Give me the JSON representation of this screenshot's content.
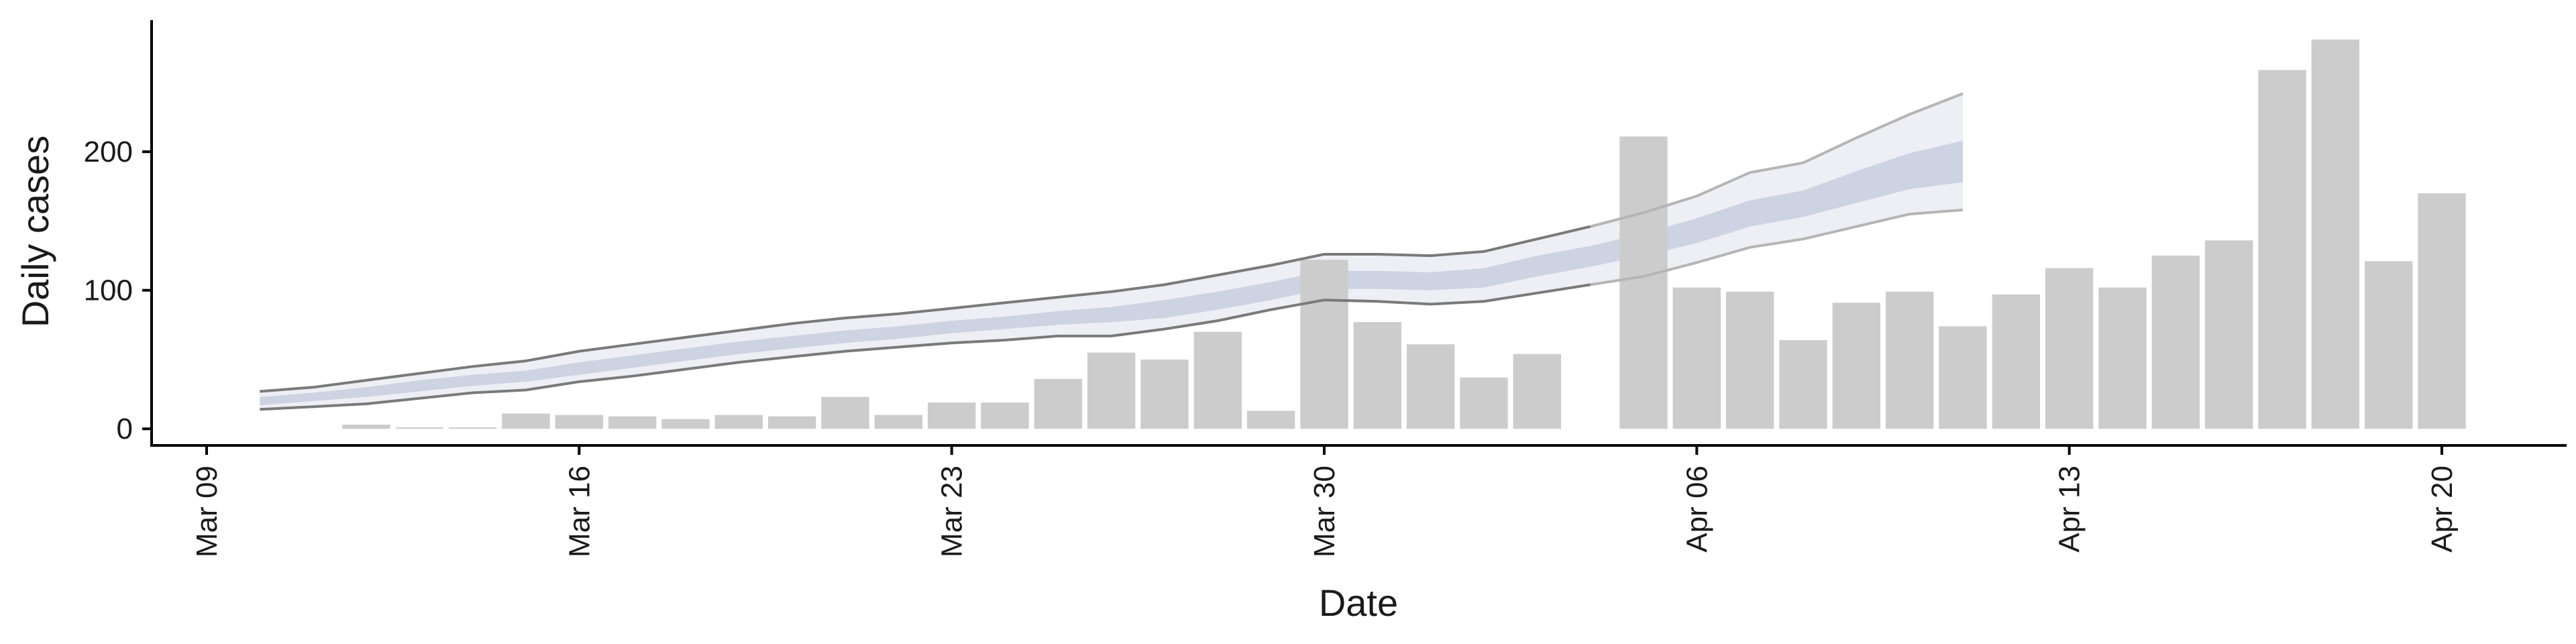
{
  "chart_data": {
    "type": "bar",
    "title": "",
    "xlabel": "Date",
    "ylabel": "Daily cases",
    "ylim": [
      -12,
      295
    ],
    "yticks": [
      0,
      100,
      200
    ],
    "xticks": [
      "Mar 09",
      "Mar 16",
      "Mar 23",
      "Mar 30",
      "Apr 06",
      "Apr 13",
      "Apr 20"
    ],
    "x_start_date": "2020-03-09",
    "x_end_date": "2020-04-20",
    "grid": false,
    "legend": "none",
    "colors": {
      "bars": "#cccccc",
      "band_outer": "#c5cadc",
      "band_inner": "#a7b1cc",
      "interval_lines": "#7a7a7a",
      "interval_lines_projection": "#b5b5b5"
    },
    "bars": [
      {
        "date": "2020-03-12",
        "value": 3
      },
      {
        "date": "2020-03-13",
        "value": 1
      },
      {
        "date": "2020-03-14",
        "value": 1
      },
      {
        "date": "2020-03-15",
        "value": 11
      },
      {
        "date": "2020-03-16",
        "value": 10
      },
      {
        "date": "2020-03-17",
        "value": 9
      },
      {
        "date": "2020-03-18",
        "value": 7
      },
      {
        "date": "2020-03-19",
        "value": 10
      },
      {
        "date": "2020-03-20",
        "value": 9
      },
      {
        "date": "2020-03-21",
        "value": 23
      },
      {
        "date": "2020-03-22",
        "value": 10
      },
      {
        "date": "2020-03-23",
        "value": 19
      },
      {
        "date": "2020-03-24",
        "value": 19
      },
      {
        "date": "2020-03-25",
        "value": 36
      },
      {
        "date": "2020-03-26",
        "value": 55
      },
      {
        "date": "2020-03-27",
        "value": 50
      },
      {
        "date": "2020-03-28",
        "value": 70
      },
      {
        "date": "2020-03-29",
        "value": 13
      },
      {
        "date": "2020-03-30",
        "value": 122
      },
      {
        "date": "2020-03-31",
        "value": 77
      },
      {
        "date": "2020-04-01",
        "value": 61
      },
      {
        "date": "2020-04-02",
        "value": 37
      },
      {
        "date": "2020-04-03",
        "value": 54
      },
      {
        "date": "2020-04-05",
        "value": 211
      },
      {
        "date": "2020-04-06",
        "value": 102
      },
      {
        "date": "2020-04-07",
        "value": 99
      },
      {
        "date": "2020-04-08",
        "value": 64
      },
      {
        "date": "2020-04-09",
        "value": 91
      },
      {
        "date": "2020-04-10",
        "value": 99
      },
      {
        "date": "2020-04-11",
        "value": 74
      },
      {
        "date": "2020-04-12",
        "value": 97
      },
      {
        "date": "2020-04-13",
        "value": 116
      },
      {
        "date": "2020-04-14",
        "value": 102
      },
      {
        "date": "2020-04-15",
        "value": 125
      },
      {
        "date": "2020-04-16",
        "value": 136
      },
      {
        "date": "2020-04-17",
        "value": 259
      },
      {
        "date": "2020-04-18",
        "value": 281
      },
      {
        "date": "2020-04-19",
        "value": 121
      },
      {
        "date": "2020-04-20",
        "value": 170
      }
    ],
    "estimate_band": {
      "dates": [
        "2020-03-10",
        "2020-03-11",
        "2020-03-12",
        "2020-03-13",
        "2020-03-14",
        "2020-03-15",
        "2020-03-16",
        "2020-03-17",
        "2020-03-18",
        "2020-03-19",
        "2020-03-20",
        "2020-03-21",
        "2020-03-22",
        "2020-03-23",
        "2020-03-24",
        "2020-03-25",
        "2020-03-26",
        "2020-03-27",
        "2020-03-28",
        "2020-03-29",
        "2020-03-30",
        "2020-03-31",
        "2020-04-01",
        "2020-04-02",
        "2020-04-03",
        "2020-04-04",
        "2020-04-05",
        "2020-04-06",
        "2020-04-07",
        "2020-04-08",
        "2020-04-09",
        "2020-04-10",
        "2020-04-11"
      ],
      "lower_90": [
        14,
        16,
        18,
        22,
        26,
        28,
        34,
        38,
        43,
        48,
        52,
        56,
        59,
        62,
        64,
        67,
        67,
        72,
        78,
        86,
        93,
        92,
        90,
        92,
        98,
        104,
        110,
        120,
        131,
        137,
        146,
        155,
        158
      ],
      "upper_90": [
        27,
        30,
        35,
        40,
        45,
        49,
        56,
        61,
        66,
        71,
        76,
        80,
        83,
        87,
        91,
        95,
        99,
        104,
        111,
        118,
        126,
        126,
        125,
        128,
        137,
        146,
        156,
        168,
        185,
        192,
        210,
        227,
        242
      ],
      "lower_50": [
        17,
        20,
        23,
        27,
        31,
        34,
        39,
        44,
        49,
        54,
        58,
        62,
        65,
        69,
        72,
        75,
        77,
        80,
        86,
        93,
        101,
        101,
        100,
        102,
        110,
        117,
        125,
        134,
        146,
        153,
        163,
        173,
        178
      ],
      "upper_50": [
        23,
        26,
        30,
        35,
        39,
        42,
        48,
        53,
        58,
        63,
        67,
        71,
        74,
        78,
        81,
        85,
        88,
        93,
        99,
        106,
        114,
        114,
        113,
        116,
        125,
        132,
        141,
        152,
        165,
        172,
        186,
        199,
        208
      ],
      "projection_from": "2020-04-04"
    }
  }
}
